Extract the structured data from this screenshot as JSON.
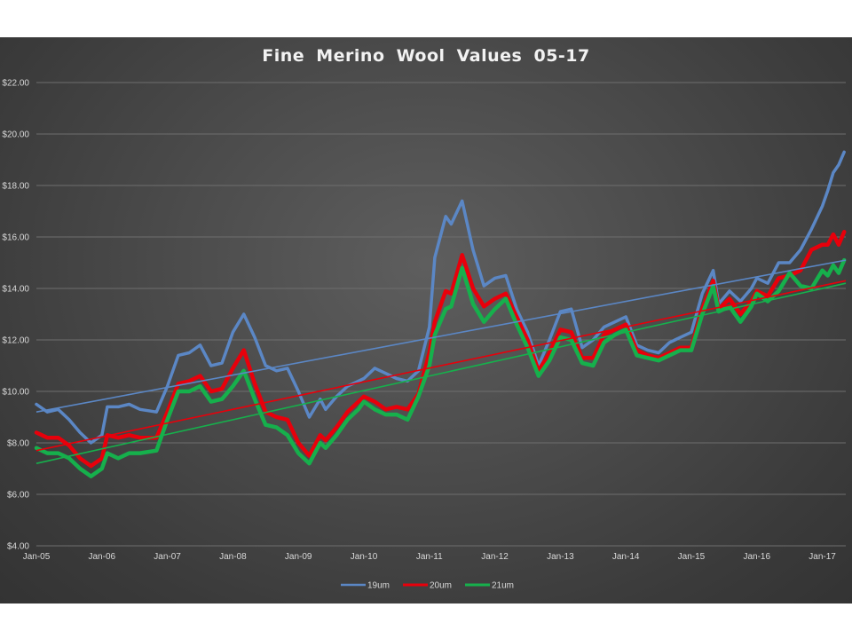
{
  "chart_data": {
    "type": "line",
    "title": "Fine Merino Wool Values 05-17",
    "xlabel": "",
    "ylabel": "",
    "ylim": [
      4,
      22
    ],
    "yticks": [
      "$4.00",
      "$6.00",
      "$8.00",
      "$10.00",
      "$12.00",
      "$14.00",
      "$16.00",
      "$18.00",
      "$20.00",
      "$22.00"
    ],
    "ytick_values": [
      4,
      6,
      8,
      10,
      12,
      14,
      16,
      18,
      20,
      22
    ],
    "xticks": [
      "Jan-05",
      "Jan-06",
      "Jan-07",
      "Jan-08",
      "Jan-09",
      "Jan-10",
      "Jan-11",
      "Jan-12",
      "Jan-13",
      "Jan-14",
      "Jan-15",
      "Jan-16",
      "Jan-17"
    ],
    "xtick_dates": [
      "2005-01",
      "2006-01",
      "2007-01",
      "2008-01",
      "2009-01",
      "2010-01",
      "2011-01",
      "2012-01",
      "2013-01",
      "2014-01",
      "2015-01",
      "2016-01",
      "2017-01"
    ],
    "grid": true,
    "legend_position": "bottom",
    "series": [
      {
        "name": "19um",
        "color": "#5b87c5",
        "points": [
          [
            "2005-01",
            9.5
          ],
          [
            "2005-03",
            9.2
          ],
          [
            "2005-05",
            9.3
          ],
          [
            "2005-07",
            8.9
          ],
          [
            "2005-09",
            8.4
          ],
          [
            "2005-11",
            8.0
          ],
          [
            "2006-01",
            8.3
          ],
          [
            "2006-02",
            9.4
          ],
          [
            "2006-04",
            9.4
          ],
          [
            "2006-06",
            9.5
          ],
          [
            "2006-08",
            9.3
          ],
          [
            "2006-11",
            9.2
          ],
          [
            "2007-01",
            10.2
          ],
          [
            "2007-03",
            11.4
          ],
          [
            "2007-05",
            11.5
          ],
          [
            "2007-07",
            11.8
          ],
          [
            "2007-09",
            11.0
          ],
          [
            "2007-11",
            11.1
          ],
          [
            "2008-01",
            12.3
          ],
          [
            "2008-03",
            13.0
          ],
          [
            "2008-05",
            12.1
          ],
          [
            "2008-07",
            11.0
          ],
          [
            "2008-09",
            10.8
          ],
          [
            "2008-11",
            10.9
          ],
          [
            "2009-01",
            10.0
          ],
          [
            "2009-03",
            9.0
          ],
          [
            "2009-05",
            9.7
          ],
          [
            "2009-06",
            9.3
          ],
          [
            "2009-08",
            9.8
          ],
          [
            "2009-10",
            10.2
          ],
          [
            "2009-12",
            10.4
          ],
          [
            "2010-01",
            10.5
          ],
          [
            "2010-03",
            10.9
          ],
          [
            "2010-05",
            10.7
          ],
          [
            "2010-07",
            10.5
          ],
          [
            "2010-09",
            10.4
          ],
          [
            "2010-11",
            10.8
          ],
          [
            "2011-01",
            12.5
          ],
          [
            "2011-02",
            15.2
          ],
          [
            "2011-04",
            16.8
          ],
          [
            "2011-05",
            16.5
          ],
          [
            "2011-07",
            17.4
          ],
          [
            "2011-09",
            15.5
          ],
          [
            "2011-11",
            14.1
          ],
          [
            "2012-01",
            14.4
          ],
          [
            "2012-03",
            14.5
          ],
          [
            "2012-05",
            13.2
          ],
          [
            "2012-07",
            12.3
          ],
          [
            "2012-09",
            11.0
          ],
          [
            "2012-11",
            12.0
          ],
          [
            "2013-01",
            13.1
          ],
          [
            "2013-03",
            13.2
          ],
          [
            "2013-05",
            11.7
          ],
          [
            "2013-07",
            12.0
          ],
          [
            "2013-09",
            12.5
          ],
          [
            "2013-11",
            12.7
          ],
          [
            "2014-01",
            12.9
          ],
          [
            "2014-03",
            11.8
          ],
          [
            "2014-05",
            11.6
          ],
          [
            "2014-07",
            11.5
          ],
          [
            "2014-09",
            11.9
          ],
          [
            "2014-11",
            12.1
          ],
          [
            "2015-01",
            12.3
          ],
          [
            "2015-03",
            13.8
          ],
          [
            "2015-05",
            14.7
          ],
          [
            "2015-06",
            13.4
          ],
          [
            "2015-08",
            13.9
          ],
          [
            "2015-10",
            13.5
          ],
          [
            "2015-12",
            14.0
          ],
          [
            "2016-01",
            14.4
          ],
          [
            "2016-03",
            14.2
          ],
          [
            "2016-05",
            15.0
          ],
          [
            "2016-07",
            15.0
          ],
          [
            "2016-09",
            15.5
          ],
          [
            "2016-11",
            16.3
          ],
          [
            "2017-01",
            17.2
          ],
          [
            "2017-02",
            17.8
          ],
          [
            "2017-03",
            18.5
          ],
          [
            "2017-04",
            18.8
          ],
          [
            "2017-05",
            19.3
          ]
        ],
        "trend": [
          9.2,
          15.1
        ]
      },
      {
        "name": "20um",
        "color": "#e8000b",
        "points": [
          [
            "2005-01",
            8.4
          ],
          [
            "2005-03",
            8.2
          ],
          [
            "2005-05",
            8.2
          ],
          [
            "2005-07",
            7.9
          ],
          [
            "2005-09",
            7.4
          ],
          [
            "2005-11",
            7.1
          ],
          [
            "2006-01",
            7.4
          ],
          [
            "2006-02",
            8.3
          ],
          [
            "2006-04",
            8.2
          ],
          [
            "2006-06",
            8.3
          ],
          [
            "2006-08",
            8.2
          ],
          [
            "2006-11",
            8.2
          ],
          [
            "2007-01",
            9.2
          ],
          [
            "2007-03",
            10.3
          ],
          [
            "2007-05",
            10.4
          ],
          [
            "2007-07",
            10.6
          ],
          [
            "2007-09",
            10.0
          ],
          [
            "2007-11",
            10.1
          ],
          [
            "2008-01",
            10.9
          ],
          [
            "2008-03",
            11.6
          ],
          [
            "2008-05",
            10.3
          ],
          [
            "2008-07",
            9.2
          ],
          [
            "2008-09",
            9.0
          ],
          [
            "2008-11",
            8.9
          ],
          [
            "2009-01",
            8.0
          ],
          [
            "2009-03",
            7.5
          ],
          [
            "2009-05",
            8.3
          ],
          [
            "2009-06",
            8.1
          ],
          [
            "2009-08",
            8.6
          ],
          [
            "2009-10",
            9.2
          ],
          [
            "2009-12",
            9.6
          ],
          [
            "2010-01",
            9.8
          ],
          [
            "2010-03",
            9.6
          ],
          [
            "2010-05",
            9.3
          ],
          [
            "2010-07",
            9.4
          ],
          [
            "2010-09",
            9.3
          ],
          [
            "2010-11",
            9.9
          ],
          [
            "2011-01",
            11.5
          ],
          [
            "2011-02",
            12.7
          ],
          [
            "2011-04",
            13.9
          ],
          [
            "2011-05",
            13.8
          ],
          [
            "2011-07",
            15.3
          ],
          [
            "2011-09",
            14.0
          ],
          [
            "2011-11",
            13.3
          ],
          [
            "2012-01",
            13.6
          ],
          [
            "2012-03",
            13.8
          ],
          [
            "2012-05",
            12.9
          ],
          [
            "2012-07",
            12.0
          ],
          [
            "2012-09",
            10.8
          ],
          [
            "2012-11",
            11.5
          ],
          [
            "2013-01",
            12.4
          ],
          [
            "2013-03",
            12.3
          ],
          [
            "2013-05",
            11.3
          ],
          [
            "2013-07",
            11.3
          ],
          [
            "2013-09",
            12.2
          ],
          [
            "2013-11",
            12.4
          ],
          [
            "2014-01",
            12.6
          ],
          [
            "2014-03",
            11.6
          ],
          [
            "2014-05",
            11.4
          ],
          [
            "2014-07",
            11.3
          ],
          [
            "2014-09",
            11.5
          ],
          [
            "2014-11",
            11.7
          ],
          [
            "2015-01",
            11.7
          ],
          [
            "2015-03",
            13.2
          ],
          [
            "2015-05",
            14.3
          ],
          [
            "2015-06",
            13.2
          ],
          [
            "2015-08",
            13.6
          ],
          [
            "2015-10",
            13.0
          ],
          [
            "2015-12",
            13.5
          ],
          [
            "2016-01",
            13.9
          ],
          [
            "2016-03",
            13.7
          ],
          [
            "2016-05",
            14.4
          ],
          [
            "2016-07",
            14.5
          ],
          [
            "2016-09",
            14.7
          ],
          [
            "2016-11",
            15.5
          ],
          [
            "2017-01",
            15.7
          ],
          [
            "2017-02",
            15.7
          ],
          [
            "2017-03",
            16.1
          ],
          [
            "2017-04",
            15.7
          ],
          [
            "2017-05",
            16.2
          ]
        ],
        "trend": [
          7.7,
          14.3
        ]
      },
      {
        "name": "21um",
        "color": "#16b04c",
        "points": [
          [
            "2005-01",
            7.8
          ],
          [
            "2005-03",
            7.6
          ],
          [
            "2005-05",
            7.6
          ],
          [
            "2005-07",
            7.4
          ],
          [
            "2005-09",
            7.0
          ],
          [
            "2005-11",
            6.7
          ],
          [
            "2006-01",
            7.0
          ],
          [
            "2006-02",
            7.6
          ],
          [
            "2006-04",
            7.4
          ],
          [
            "2006-06",
            7.6
          ],
          [
            "2006-08",
            7.6
          ],
          [
            "2006-11",
            7.7
          ],
          [
            "2007-01",
            8.9
          ],
          [
            "2007-03",
            10.0
          ],
          [
            "2007-05",
            10.0
          ],
          [
            "2007-07",
            10.2
          ],
          [
            "2007-09",
            9.6
          ],
          [
            "2007-11",
            9.7
          ],
          [
            "2008-01",
            10.2
          ],
          [
            "2008-03",
            10.8
          ],
          [
            "2008-05",
            9.7
          ],
          [
            "2008-07",
            8.7
          ],
          [
            "2008-09",
            8.6
          ],
          [
            "2008-11",
            8.3
          ],
          [
            "2009-01",
            7.6
          ],
          [
            "2009-03",
            7.2
          ],
          [
            "2009-05",
            8.0
          ],
          [
            "2009-06",
            7.8
          ],
          [
            "2009-08",
            8.3
          ],
          [
            "2009-10",
            8.9
          ],
          [
            "2009-12",
            9.3
          ],
          [
            "2010-01",
            9.6
          ],
          [
            "2010-03",
            9.3
          ],
          [
            "2010-05",
            9.1
          ],
          [
            "2010-07",
            9.1
          ],
          [
            "2010-09",
            8.9
          ],
          [
            "2010-11",
            9.8
          ],
          [
            "2011-01",
            11.0
          ],
          [
            "2011-02",
            12.2
          ],
          [
            "2011-04",
            13.2
          ],
          [
            "2011-05",
            13.3
          ],
          [
            "2011-07",
            14.8
          ],
          [
            "2011-09",
            13.4
          ],
          [
            "2011-11",
            12.7
          ],
          [
            "2012-01",
            13.2
          ],
          [
            "2012-03",
            13.6
          ],
          [
            "2012-05",
            12.6
          ],
          [
            "2012-07",
            11.7
          ],
          [
            "2012-09",
            10.6
          ],
          [
            "2012-11",
            11.2
          ],
          [
            "2013-01",
            12.1
          ],
          [
            "2013-03",
            12.0
          ],
          [
            "2013-05",
            11.1
          ],
          [
            "2013-07",
            11.0
          ],
          [
            "2013-09",
            11.9
          ],
          [
            "2013-11",
            12.2
          ],
          [
            "2014-01",
            12.4
          ],
          [
            "2014-03",
            11.4
          ],
          [
            "2014-05",
            11.3
          ],
          [
            "2014-07",
            11.2
          ],
          [
            "2014-09",
            11.4
          ],
          [
            "2014-11",
            11.6
          ],
          [
            "2015-01",
            11.6
          ],
          [
            "2015-03",
            13.0
          ],
          [
            "2015-05",
            14.1
          ],
          [
            "2015-06",
            13.1
          ],
          [
            "2015-08",
            13.3
          ],
          [
            "2015-10",
            12.7
          ],
          [
            "2015-12",
            13.3
          ],
          [
            "2016-01",
            13.8
          ],
          [
            "2016-03",
            13.5
          ],
          [
            "2016-05",
            13.9
          ],
          [
            "2016-07",
            14.6
          ],
          [
            "2016-09",
            14.1
          ],
          [
            "2016-11",
            14.0
          ],
          [
            "2017-01",
            14.7
          ],
          [
            "2017-02",
            14.5
          ],
          [
            "2017-03",
            14.9
          ],
          [
            "2017-04",
            14.6
          ],
          [
            "2017-05",
            15.1
          ]
        ],
        "trend": [
          7.2,
          14.2
        ]
      }
    ]
  }
}
